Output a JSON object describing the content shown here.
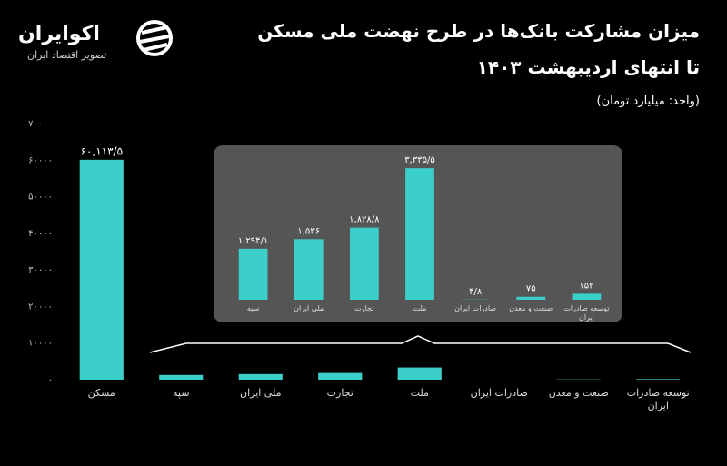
{
  "brand": {
    "name": "اکوایران",
    "tagline": "تصویر اقتصاد ایران"
  },
  "chart_data": [
    {
      "type": "bar",
      "title": "میزان مشارکت بانک‌ها در طرح نهضت ملی مسکن",
      "subtitle": "تا انتهای اردیبهشت ۱۴۰۳",
      "unit_note": "(واحد: میلیارد تومان)",
      "categories": [
        "مسکن",
        "سپه",
        "ملی ایران",
        "تجارت",
        "ملت",
        "صادرات ایران",
        "صنعت و معدن",
        "توسعه صادرات ایران"
      ],
      "values": [
        60113.5,
        1294.1,
        1536,
        1828.8,
        3335.5,
        4.8,
        75,
        152
      ],
      "value_labels": [
        "۶۰,۱۱۳/۵",
        null,
        null,
        null,
        null,
        null,
        null,
        null
      ],
      "color": "#3ccfc9",
      "ylim": [
        0,
        70000
      ],
      "yticks": [
        {
          "value": 0,
          "label": "۰"
        },
        {
          "value": 10000,
          "label": "۱۰۰۰۰"
        },
        {
          "value": 20000,
          "label": "۲۰۰۰۰"
        },
        {
          "value": 30000,
          "label": "۳۰۰۰۰"
        },
        {
          "value": 40000,
          "label": "۴۰۰۰۰"
        },
        {
          "value": 50000,
          "label": "۵۰۰۰۰"
        },
        {
          "value": 60000,
          "label": "۶۰۰۰۰"
        },
        {
          "value": 70000,
          "label": "۷۰۰۰۰"
        }
      ],
      "grid": false
    },
    {
      "type": "bar",
      "categories": [
        "سپه",
        "ملی ایران",
        "تجارت",
        "ملت",
        "صادرات ایران",
        "صنعت و معدن",
        "توسعه صادرات ایران"
      ],
      "values": [
        1294.1,
        1536,
        1828.8,
        3335.5,
        4.8,
        75,
        152
      ],
      "value_labels": [
        "۱,۲۹۴/۱",
        "۱,۵۳۶",
        "۱,۸۲۸/۸",
        "۳,۳۳۵/۵",
        "۴/۸",
        "۷۵",
        "۱۵۲"
      ],
      "color": "#3ccfc9",
      "ylim": [
        0,
        3800
      ]
    }
  ]
}
